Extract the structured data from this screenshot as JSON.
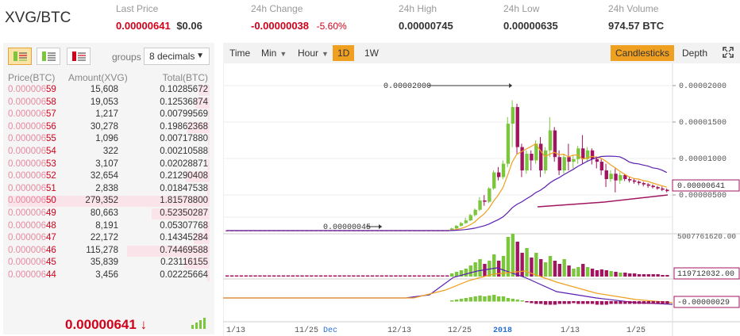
{
  "header": {
    "pair": "XVG/BTC",
    "last_price_label": "Last Price",
    "last_price_btc": "0.00000641",
    "last_price_usd": "$0.06",
    "change_label": "24h Change",
    "change_value": "-0.00000038",
    "change_pct": "-5.60%",
    "high_label": "24h High",
    "high_value": "0.00000745",
    "low_label": "24h Low",
    "low_value": "0.00000635",
    "volume_label": "24h Volume",
    "volume_value": "974.57 BTC"
  },
  "orderbook": {
    "groups_label": "groups",
    "groups_value": "8 decimals",
    "col_price": "Price(BTC)",
    "col_amount": "Amount(XVG)",
    "col_total": "Total(BTC)",
    "rows": [
      {
        "price_head": "0.000006",
        "price_tail": "59",
        "amount": "15,608",
        "total": "0.10285672",
        "depth": 0.057
      },
      {
        "price_head": "0.000006",
        "price_tail": "58",
        "amount": "19,053",
        "total": "0.12536874",
        "depth": 0.069
      },
      {
        "price_head": "0.000006",
        "price_tail": "57",
        "amount": "1,217",
        "total": "0.00799569",
        "depth": 0.004
      },
      {
        "price_head": "0.000006",
        "price_tail": "56",
        "amount": "30,278",
        "total": "0.19862368",
        "depth": 0.109
      },
      {
        "price_head": "0.000006",
        "price_tail": "55",
        "amount": "1,096",
        "total": "0.00717880",
        "depth": 0.004
      },
      {
        "price_head": "0.000006",
        "price_tail": "54",
        "amount": "322",
        "total": "0.00210588",
        "depth": 0.001
      },
      {
        "price_head": "0.000006",
        "price_tail": "53",
        "amount": "3,107",
        "total": "0.02028871",
        "depth": 0.011
      },
      {
        "price_head": "0.000006",
        "price_tail": "52",
        "amount": "32,654",
        "total": "0.21290408",
        "depth": 0.117
      },
      {
        "price_head": "0.000006",
        "price_tail": "51",
        "amount": "2,838",
        "total": "0.01847538",
        "depth": 0.01
      },
      {
        "price_head": "0.000006",
        "price_tail": "50",
        "amount": "279,352",
        "total": "1.81578800",
        "depth": 1.0
      },
      {
        "price_head": "0.000006",
        "price_tail": "49",
        "amount": "80,663",
        "total": "0.52350287",
        "depth": 0.288
      },
      {
        "price_head": "0.000006",
        "price_tail": "48",
        "amount": "8,191",
        "total": "0.05307768",
        "depth": 0.029
      },
      {
        "price_head": "0.000006",
        "price_tail": "47",
        "amount": "22,172",
        "total": "0.14345284",
        "depth": 0.079
      },
      {
        "price_head": "0.000006",
        "price_tail": "46",
        "amount": "115,278",
        "total": "0.74469588",
        "depth": 0.41
      },
      {
        "price_head": "0.000006",
        "price_tail": "45",
        "amount": "35,839",
        "total": "0.23116155",
        "depth": 0.127
      },
      {
        "price_head": "0.000006",
        "price_tail": "44",
        "amount": "3,456",
        "total": "0.02225664",
        "depth": 0.012
      }
    ],
    "last_price": "0.00000641",
    "last_arrow": "↓"
  },
  "chart": {
    "toolbar": {
      "time": "Time",
      "min": "Min",
      "hour": "Hour",
      "d1": "1D",
      "w1": "1W",
      "candlesticks": "Candlesticks",
      "depth": "Depth"
    },
    "price_axis": [
      "0.00002000",
      "0.00001500",
      "0.00001000",
      "0.00000500"
    ],
    "current_price_tag": "0.00000641",
    "high_annotation": "0.00002000",
    "low_annotation": "0.00000045",
    "volume_axis_top": "5007761620.00",
    "volume_tag": "119712032.00",
    "macd_tag": "-0.00000029",
    "x_labels": [
      "1/13",
      "11/25",
      "Dec",
      "12/13",
      "12/25",
      "2018",
      "1/13",
      "1/25"
    ],
    "colors": {
      "up": "#7cc63e",
      "down": "#a0155f",
      "ma_fast": "#f0a020",
      "ma_slow": "#5a1fb0",
      "ma_long": "#a0155f"
    }
  }
}
